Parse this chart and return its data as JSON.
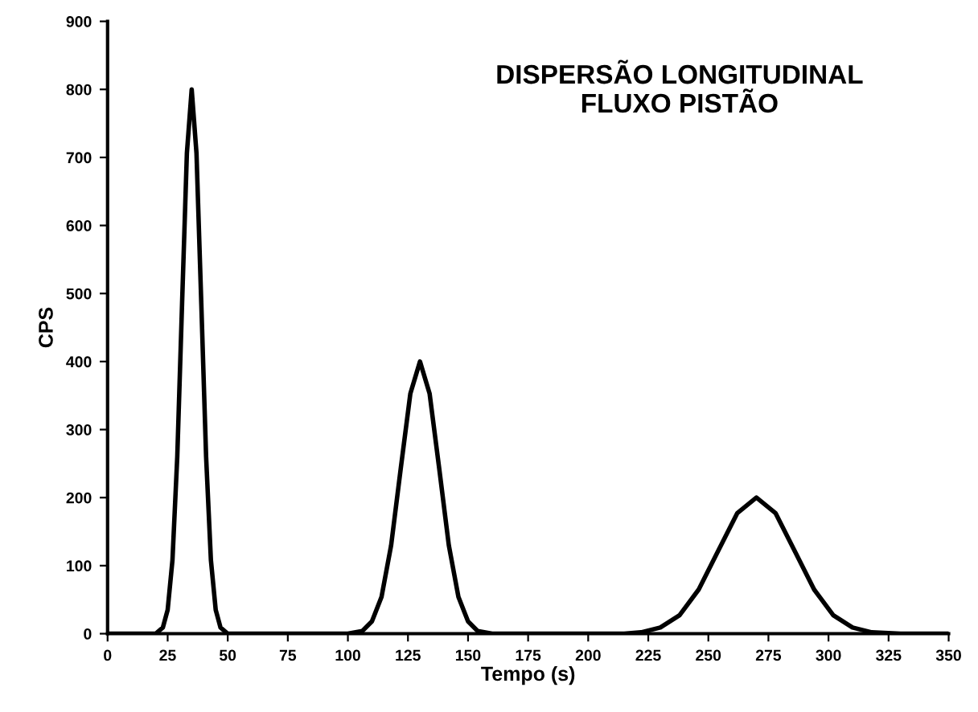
{
  "chart_data": {
    "type": "line",
    "title": "DISPERSÃO LONGITUDINAL\nFLUXO PISTÃO",
    "xlabel": "Tempo (s)",
    "ylabel": "CPS",
    "xlim": [
      0,
      350
    ],
    "xticks": [
      0,
      25,
      50,
      75,
      100,
      125,
      150,
      175,
      200,
      225,
      250,
      275,
      300,
      325,
      350
    ],
    "ylim": [
      0,
      900
    ],
    "yticks": [
      0,
      100,
      200,
      300,
      400,
      500,
      600,
      700,
      800,
      900
    ],
    "grid": false,
    "legend": false,
    "marker": "none",
    "line_style": "solid",
    "series": [
      {
        "color": "#000000",
        "x": [
          0,
          20,
          23,
          25,
          27,
          29,
          31,
          33,
          35,
          37,
          39,
          41,
          43,
          45,
          47,
          50,
          100,
          106,
          110,
          114,
          118,
          122,
          126,
          130,
          134,
          138,
          142,
          146,
          150,
          154,
          160,
          215,
          222,
          230,
          238,
          246,
          254,
          262,
          270,
          278,
          286,
          294,
          302,
          310,
          318,
          330,
          350
        ],
        "values": [
          0,
          0,
          9,
          35,
          108,
          260,
          485,
          706,
          800,
          706,
          485,
          260,
          108,
          35,
          9,
          0,
          0,
          4,
          18,
          54,
          130,
          243,
          353,
          400,
          353,
          243,
          130,
          54,
          18,
          4,
          0,
          0,
          2,
          9,
          27,
          65,
          121,
          177,
          200,
          177,
          121,
          65,
          27,
          9,
          2,
          0,
          0
        ]
      }
    ]
  }
}
